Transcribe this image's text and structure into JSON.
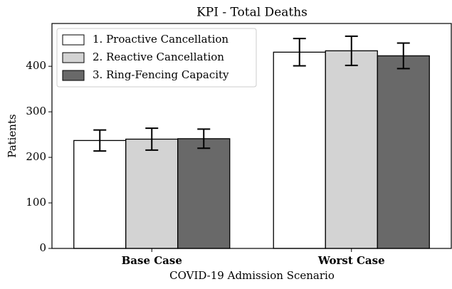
{
  "chart_data": {
    "type": "bar",
    "title": "KPI - Total Deaths",
    "x_label": "COVID-19 Admission Scenario",
    "y_label": "Patients",
    "categories": [
      "Base Case",
      "Worst Case"
    ],
    "series": [
      {
        "name": "1. Proactive Cancellation",
        "color": "#ffffff",
        "values": [
          237,
          431
        ],
        "errors": [
          23,
          30
        ]
      },
      {
        "name": "2. Reactive Cancellation",
        "color": "#d3d3d3",
        "values": [
          240,
          434
        ],
        "errors": [
          24,
          32
        ]
      },
      {
        "name": "3. Ring-Fencing Capacity",
        "color": "#696969",
        "values": [
          241,
          423
        ],
        "errors": [
          21,
          28
        ]
      }
    ],
    "ylim": [
      0,
      494
    ],
    "yticks": [
      0,
      100,
      200,
      300,
      400
    ],
    "legend": "upper left"
  }
}
